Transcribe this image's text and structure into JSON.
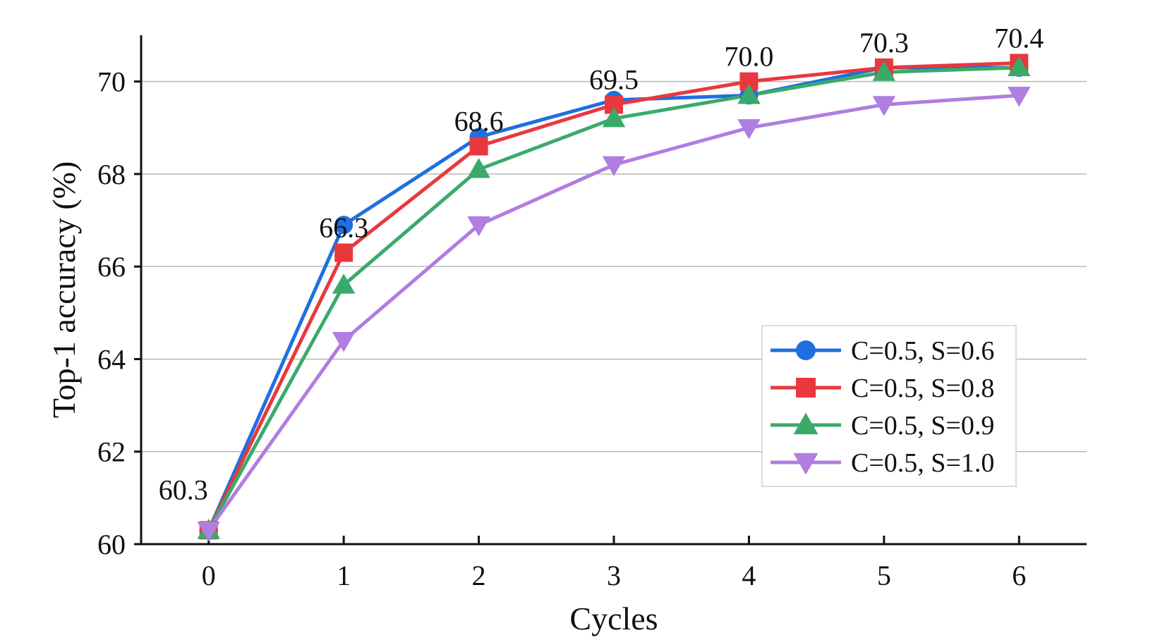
{
  "chart_data": {
    "type": "line",
    "title": "",
    "xlabel": "Cycles",
    "ylabel": "Top-1 accuracy (%)",
    "x": [
      0,
      1,
      2,
      3,
      4,
      5,
      6
    ],
    "xticks": [
      "0",
      "1",
      "2",
      "3",
      "4",
      "5",
      "6"
    ],
    "yticks": [
      "60",
      "62",
      "64",
      "66",
      "68",
      "70"
    ],
    "xlim": [
      -0.5,
      6.5
    ],
    "ylim": [
      60,
      71
    ],
    "grid": "horizontal",
    "legend": "lower-right",
    "series": [
      {
        "name": "C=0.5, S=0.6",
        "color": "#1f6fe0",
        "marker": "circle",
        "values": [
          60.3,
          66.9,
          68.8,
          69.6,
          69.7,
          70.3,
          70.3
        ]
      },
      {
        "name": "C=0.5, S=0.8",
        "color": "#e8383d",
        "marker": "square",
        "values": [
          60.3,
          66.3,
          68.6,
          69.5,
          70.0,
          70.3,
          70.4
        ]
      },
      {
        "name": "C=0.5, S=0.9",
        "color": "#3aaa6a",
        "marker": "triangle-up",
        "values": [
          60.3,
          65.6,
          68.1,
          69.2,
          69.7,
          70.2,
          70.3
        ]
      },
      {
        "name": "C=0.5, S=1.0",
        "color": "#b07de0",
        "marker": "triangle-down",
        "values": [
          60.3,
          64.4,
          66.9,
          68.2,
          69.0,
          69.5,
          69.7
        ]
      }
    ],
    "annotations": [
      {
        "x": 0,
        "y": 60.3,
        "text": "60.3"
      },
      {
        "x": 1,
        "y": 66.3,
        "text": "66.3"
      },
      {
        "x": 2,
        "y": 68.6,
        "text": "68.6"
      },
      {
        "x": 3,
        "y": 69.5,
        "text": "69.5"
      },
      {
        "x": 4,
        "y": 70.0,
        "text": "70.0"
      },
      {
        "x": 5,
        "y": 70.3,
        "text": "70.3"
      },
      {
        "x": 6,
        "y": 70.4,
        "text": "70.4"
      }
    ]
  }
}
